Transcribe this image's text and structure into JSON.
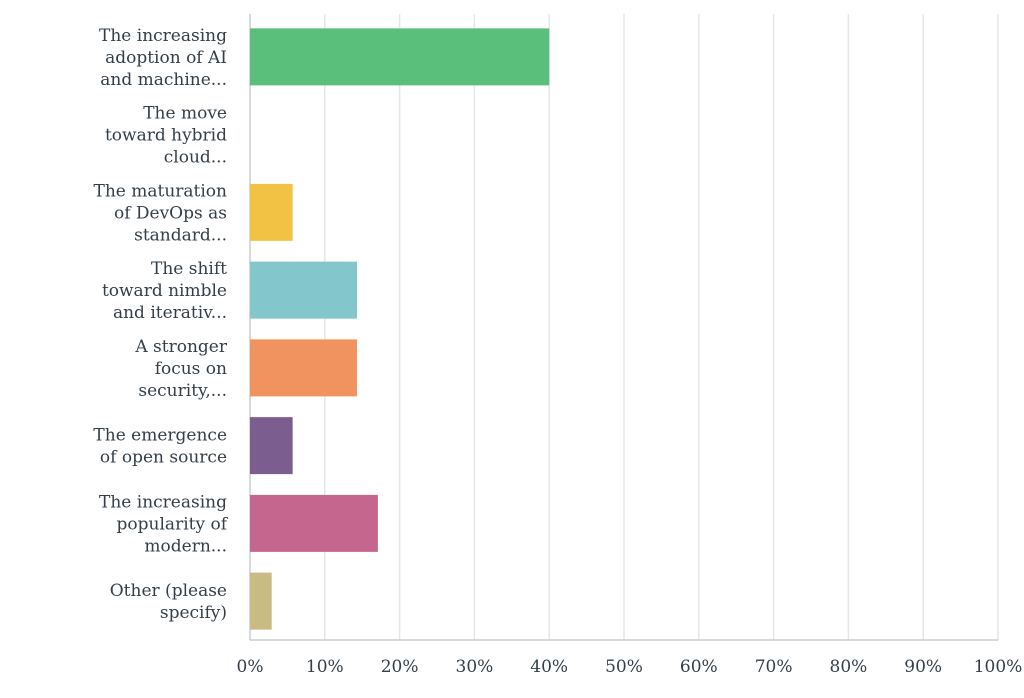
{
  "chart_data": {
    "type": "bar",
    "orientation": "horizontal",
    "categories": [
      [
        "The increasing",
        "adoption of AI",
        "and machine..."
      ],
      [
        "The move",
        "toward hybrid",
        "cloud..."
      ],
      [
        "The maturation",
        "of DevOps as",
        "standard..."
      ],
      [
        "The shift",
        "toward nimble",
        "and iterativ..."
      ],
      [
        "A stronger",
        "focus on",
        "security,..."
      ],
      [
        "The emergence",
        "of open source"
      ],
      [
        "The increasing",
        "popularity of",
        "modern..."
      ],
      [
        "Other (please",
        "specify)"
      ]
    ],
    "values": [
      40,
      0,
      5.7,
      14.3,
      14.3,
      5.7,
      17.1,
      2.9
    ],
    "colors": [
      "#59bf7a",
      "#4aa3df",
      "#f2c244",
      "#83c6cc",
      "#f0935e",
      "#7b5e8f",
      "#c4668e",
      "#c9bb84"
    ],
    "xlim": [
      0,
      100
    ],
    "xticks": [
      "0%",
      "10%",
      "20%",
      "30%",
      "40%",
      "50%",
      "60%",
      "70%",
      "80%",
      "90%",
      "100%"
    ],
    "xtick_values": [
      0,
      10,
      20,
      30,
      40,
      50,
      60,
      70,
      80,
      90,
      100
    ],
    "grid": true
  }
}
